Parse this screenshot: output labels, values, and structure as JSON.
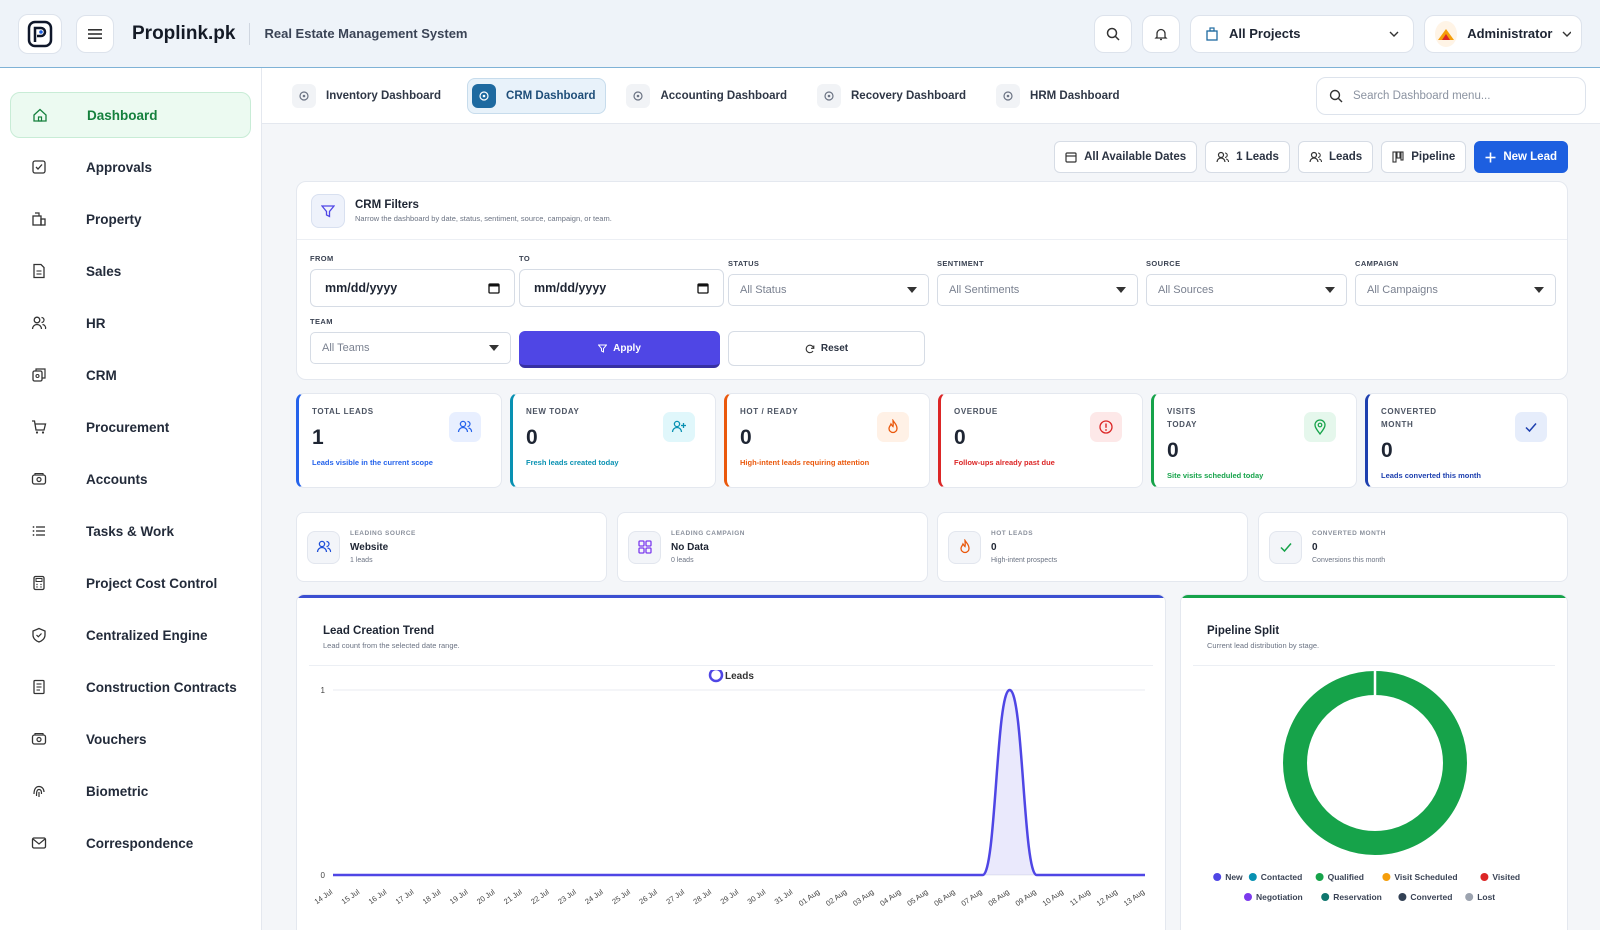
{
  "header": {
    "brand": "Proplink.pk",
    "subtitle": "Real Estate Management System",
    "project_select": "All Projects",
    "user": "Administrator"
  },
  "sidebar": {
    "items": [
      {
        "label": "Dashboard",
        "icon": "home-icon",
        "active": true
      },
      {
        "label": "Approvals",
        "icon": "check-square-icon"
      },
      {
        "label": "Property",
        "icon": "building-icon"
      },
      {
        "label": "Sales",
        "icon": "file-icon"
      },
      {
        "label": "HR",
        "icon": "users-icon"
      },
      {
        "label": "CRM",
        "icon": "crm-icon"
      },
      {
        "label": "Procurement",
        "icon": "cart-icon"
      },
      {
        "label": "Accounts",
        "icon": "wallet-icon"
      },
      {
        "label": "Tasks & Work",
        "icon": "list-icon"
      },
      {
        "label": "Project Cost Control",
        "icon": "calculator-icon"
      },
      {
        "label": "Centralized Engine",
        "icon": "shield-icon"
      },
      {
        "label": "Construction Contracts",
        "icon": "document-icon"
      },
      {
        "label": "Vouchers",
        "icon": "voucher-icon"
      },
      {
        "label": "Biometric",
        "icon": "fingerprint-icon"
      },
      {
        "label": "Correspondence",
        "icon": "mail-icon"
      }
    ]
  },
  "tabs": [
    {
      "label": "Inventory Dashboard",
      "active": false
    },
    {
      "label": "CRM Dashboard",
      "active": true
    },
    {
      "label": "Accounting Dashboard",
      "active": false
    },
    {
      "label": "Recovery Dashboard",
      "active": false
    },
    {
      "label": "HRM Dashboard",
      "active": false
    }
  ],
  "dash_search": {
    "placeholder": "Search Dashboard menu..."
  },
  "actions": {
    "dates": "All Available Dates",
    "leads_count": "1 Leads",
    "leads": "Leads",
    "pipeline": "Pipeline",
    "new_lead": "New Lead"
  },
  "filters": {
    "title": "CRM Filters",
    "subtitle": "Narrow the dashboard by date, status, sentiment, source, campaign, or team.",
    "from_label": "FROM",
    "from_value": "mm/dd/yyyy",
    "to_label": "TO",
    "to_value": "mm/dd/yyyy",
    "status_label": "STATUS",
    "status_value": "All Status",
    "sentiment_label": "SENTIMENT",
    "sentiment_value": "All Sentiments",
    "source_label": "SOURCE",
    "source_value": "All Sources",
    "campaign_label": "CAMPAIGN",
    "campaign_value": "All Campaigns",
    "team_label": "TEAM",
    "team_value": "All Teams",
    "apply": "Apply",
    "reset": "Reset"
  },
  "kpis": [
    {
      "label": "TOTAL LEADS",
      "value": "1",
      "desc": "Leads visible in the current scope",
      "color": "#2563eb",
      "bg": "#e8efff",
      "icon": "users-icon"
    },
    {
      "label": "NEW TODAY",
      "value": "0",
      "desc": "Fresh leads created today",
      "color": "#0891b2",
      "bg": "#e0f7fb",
      "icon": "user-plus-icon"
    },
    {
      "label": "HOT / READY",
      "value": "0",
      "desc": "High-intent leads requiring attention",
      "color": "#ea580c",
      "bg": "#fff1e6",
      "icon": "flame-icon"
    },
    {
      "label": "OVERDUE",
      "value": "0",
      "desc": "Follow-ups already past due",
      "color": "#dc2626",
      "bg": "#fde8e8",
      "icon": "alert-icon"
    },
    {
      "label": "VISITS TODAY",
      "value": "0",
      "desc": "Site visits scheduled today",
      "color": "#16a34a",
      "bg": "#e5f7ec",
      "icon": "pin-icon"
    },
    {
      "label": "CONVERTED MONTH",
      "value": "0",
      "desc": "Leads converted this month",
      "color": "#1e40af",
      "bg": "#e6edfb",
      "icon": "check-icon"
    }
  ],
  "minis": [
    {
      "label": "LEADING SOURCE",
      "value": "Website",
      "sub": "1 leads",
      "icon": "users-icon",
      "color": "#1d4ed8"
    },
    {
      "label": "LEADING CAMPAIGN",
      "value": "No Data",
      "sub": "0 leads",
      "icon": "grid-icon",
      "color": "#7c3aed"
    },
    {
      "label": "HOT LEADS",
      "value": "0",
      "sub": "High-intent prospects",
      "icon": "flame-icon",
      "color": "#ea580c"
    },
    {
      "label": "CONVERTED MONTH",
      "value": "0",
      "sub": "Conversions this month",
      "icon": "check-icon",
      "color": "#16a34a"
    }
  ],
  "trend": {
    "title": "Lead Creation Trend",
    "subtitle": "Lead count from the selected date range.",
    "legend": "Leads"
  },
  "pipeline": {
    "title": "Pipeline Split",
    "subtitle": "Current lead distribution by stage."
  },
  "chart_data": [
    {
      "type": "area",
      "series": [
        {
          "name": "Leads",
          "values": [
            0,
            0,
            0,
            0,
            0,
            0,
            0,
            0,
            0,
            0,
            0,
            0,
            0,
            0,
            0,
            0,
            0,
            0,
            0,
            0,
            0,
            0,
            0,
            0,
            0,
            1,
            0,
            0,
            0,
            0,
            0
          ]
        }
      ],
      "x": [
        "14 Jul",
        "15 Jul",
        "16 Jul",
        "17 Jul",
        "18 Jul",
        "19 Jul",
        "20 Jul",
        "21 Jul",
        "22 Jul",
        "23 Jul",
        "24 Jul",
        "25 Jul",
        "26 Jul",
        "27 Jul",
        "28 Jul",
        "29 Jul",
        "30 Jul",
        "31 Jul",
        "01 Aug",
        "02 Aug",
        "03 Aug",
        "04 Aug",
        "05 Aug",
        "06 Aug",
        "07 Aug",
        "08 Aug",
        "09 Aug",
        "10 Aug",
        "11 Aug",
        "12 Aug",
        "13 Aug"
      ],
      "yticks": [
        "0",
        "1"
      ],
      "ylim": [
        0,
        1
      ],
      "color": "#4f46e5"
    },
    {
      "type": "pie",
      "categories": [
        "New",
        "Contacted",
        "Qualified",
        "Visit Scheduled",
        "Visited",
        "Negotiation",
        "Reservation",
        "Converted",
        "Lost"
      ],
      "values": [
        0,
        0,
        1,
        0,
        0,
        0,
        0,
        0,
        0
      ],
      "colors": [
        "#4f46e5",
        "#0891b2",
        "#16a34a",
        "#f59e0b",
        "#dc2626",
        "#7c3aed",
        "#0f766e",
        "#334155",
        "#9ca3af"
      ]
    }
  ]
}
